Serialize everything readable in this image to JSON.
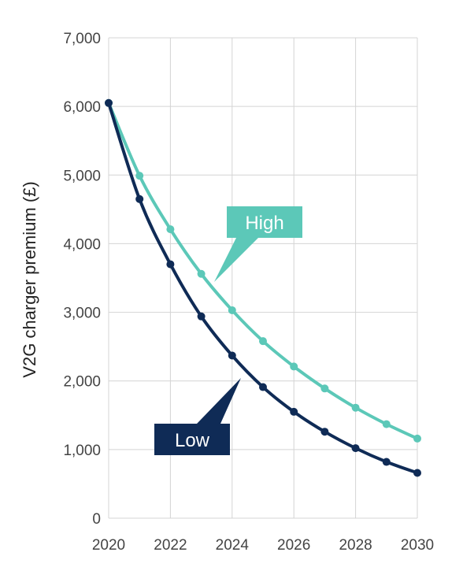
{
  "chart_data": {
    "type": "line",
    "title": "",
    "xlabel": "",
    "ylabel": "V2G charger premium (£)",
    "x": [
      2020,
      2021,
      2022,
      2023,
      2024,
      2025,
      2026,
      2027,
      2028,
      2029,
      2030
    ],
    "x_ticks": [
      "2020",
      "2022",
      "2024",
      "2026",
      "2028",
      "2030"
    ],
    "y_ticks": [
      "0",
      "1,000",
      "2,000",
      "3,000",
      "4,000",
      "5,000",
      "6,000",
      "7,000"
    ],
    "xlim": [
      2020,
      2030
    ],
    "ylim": [
      0,
      7000
    ],
    "grid": true,
    "series": [
      {
        "name": "High",
        "color": "#5cc8b8",
        "values": [
          6050,
          4990,
          4210,
          3560,
          3030,
          2580,
          2210,
          1890,
          1610,
          1370,
          1160
        ]
      },
      {
        "name": "Low",
        "color": "#0f2b56",
        "values": [
          6050,
          4650,
          3700,
          2940,
          2370,
          1910,
          1550,
          1260,
          1020,
          820,
          660
        ]
      }
    ]
  }
}
